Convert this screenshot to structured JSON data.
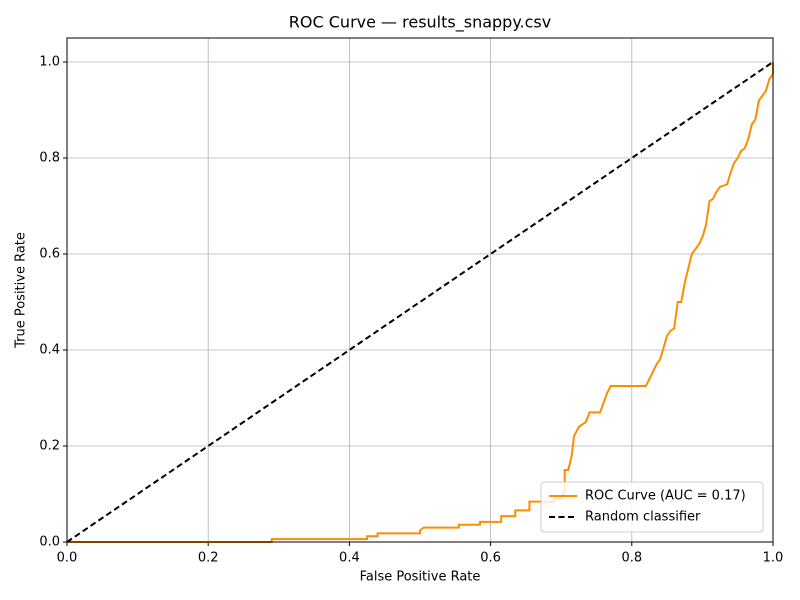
{
  "chart_data": {
    "type": "line",
    "title": "ROC Curve — results_snappy.csv",
    "x_label": "False Positive Rate",
    "y_label": "True Positive Rate",
    "xlim": [
      0,
      1
    ],
    "ylim": [
      0,
      1.05
    ],
    "xticks": [
      {
        "value": 0,
        "label": "0.0"
      },
      {
        "value": 0.2,
        "label": "0.2"
      },
      {
        "value": 0.4,
        "label": "0.4"
      },
      {
        "value": 0.6,
        "label": "0.6"
      },
      {
        "value": 0.8,
        "label": "0.8"
      },
      {
        "value": 1,
        "label": "1.0"
      }
    ],
    "yticks": [
      {
        "value": 0,
        "label": "0.0"
      },
      {
        "value": 0.2,
        "label": "0.2"
      },
      {
        "value": 0.4,
        "label": "0.4"
      },
      {
        "value": 0.6,
        "label": "0.6"
      },
      {
        "value": 0.8,
        "label": "0.8"
      },
      {
        "value": 1,
        "label": "1.0"
      }
    ],
    "grid": true,
    "legend": "lower right",
    "series": [
      {
        "name": "ROC Curve (AUC = 0.17)",
        "color": "#ff8c00",
        "linestyle": "solid",
        "x": [
          0,
          0.29,
          0.29,
          0.425,
          0.425,
          0.44,
          0.44,
          0.5,
          0.5,
          0.505,
          0.555,
          0.555,
          0.585,
          0.585,
          0.615,
          0.615,
          0.635,
          0.635,
          0.655,
          0.655,
          0.69,
          0.69,
          0.7,
          0.705,
          0.705,
          0.71,
          0.715,
          0.718,
          0.725,
          0.735,
          0.74,
          0.755,
          0.76,
          0.765,
          0.77,
          0.82,
          0.825,
          0.83,
          0.835,
          0.84,
          0.845,
          0.85,
          0.855,
          0.86,
          0.865,
          0.87,
          0.875,
          0.88,
          0.885,
          0.89,
          0.895,
          0.9,
          0.905,
          0.91,
          0.915,
          0.92,
          0.925,
          0.935,
          0.94,
          0.945,
          0.95,
          0.955,
          0.96,
          0.965,
          0.97,
          0.975,
          0.98,
          0.985,
          0.99,
          0.995,
          1,
          1
        ],
        "values": [
          0,
          0,
          0.006,
          0.006,
          0.012,
          0.012,
          0.018,
          0.018,
          0.024,
          0.03,
          0.03,
          0.036,
          0.036,
          0.042,
          0.042,
          0.054,
          0.054,
          0.066,
          0.066,
          0.084,
          0.084,
          0.09,
          0.09,
          0.11,
          0.15,
          0.15,
          0.18,
          0.22,
          0.24,
          0.25,
          0.27,
          0.27,
          0.29,
          0.31,
          0.325,
          0.325,
          0.34,
          0.355,
          0.37,
          0.38,
          0.405,
          0.43,
          0.44,
          0.445,
          0.5,
          0.5,
          0.54,
          0.57,
          0.6,
          0.61,
          0.62,
          0.635,
          0.66,
          0.71,
          0.715,
          0.73,
          0.74,
          0.745,
          0.77,
          0.79,
          0.8,
          0.815,
          0.82,
          0.84,
          0.87,
          0.88,
          0.92,
          0.93,
          0.94,
          0.965,
          0.975,
          1
        ]
      },
      {
        "name": "Random classifier",
        "color": "#000000",
        "linestyle": "dashed",
        "x": [
          0,
          1
        ],
        "values": [
          0,
          1
        ]
      }
    ]
  }
}
